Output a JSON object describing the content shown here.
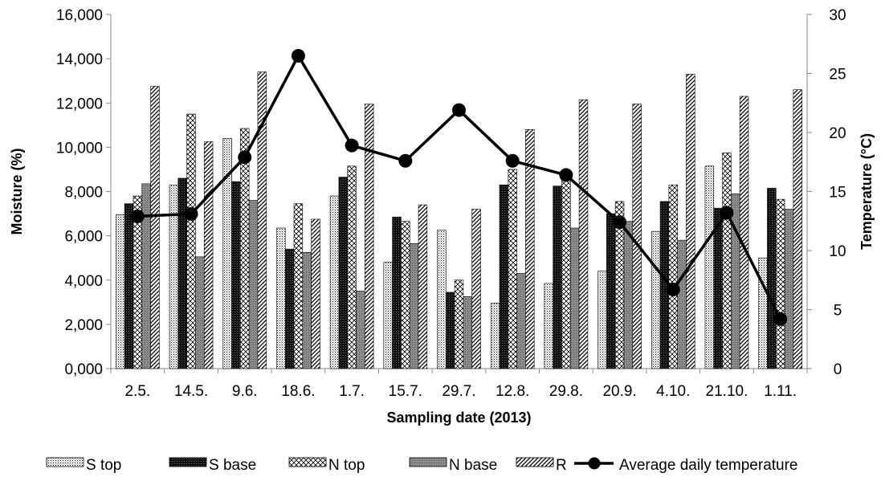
{
  "chart_data": {
    "type": "bar",
    "xlabel": "Sampling date (2013)",
    "ylabel": "Moisture (%)",
    "y2label": "Temperature (°C)",
    "ylim": [
      0,
      16000
    ],
    "y2lim": [
      0,
      30
    ],
    "yticks": [
      "0,000",
      "2,000",
      "4,000",
      "6,000",
      "8,000",
      "10,000",
      "12,000",
      "14,000",
      "16,000"
    ],
    "y2ticks": [
      "0",
      "5",
      "10",
      "15",
      "20",
      "25",
      "30"
    ],
    "grid": false,
    "legend_position": "bottom",
    "categories": [
      "2.5.",
      "14.5.",
      "9.6.",
      "18.6.",
      "1.7.",
      "15.7.",
      "29.7.",
      "12.8.",
      "29.8.",
      "20.9.",
      "4.10.",
      "21.10.",
      "1.11."
    ],
    "series": [
      {
        "name": "S top",
        "pattern": "dots",
        "values": [
          6950,
          8300,
          10400,
          6350,
          7800,
          4800,
          6250,
          2950,
          3850,
          4400,
          6200,
          9150,
          5000
        ]
      },
      {
        "name": "S base",
        "pattern": "solid-dark",
        "values": [
          7450,
          8600,
          8450,
          5400,
          8650,
          6850,
          3450,
          8300,
          8250,
          7000,
          7550,
          7250,
          8150
        ]
      },
      {
        "name": "N top",
        "pattern": "crosshatch",
        "values": [
          7800,
          11500,
          10850,
          7450,
          9150,
          6650,
          4000,
          9000,
          8650,
          7550,
          8300,
          9750,
          7650
        ]
      },
      {
        "name": "N base",
        "pattern": "grey",
        "values": [
          8350,
          5050,
          7600,
          5250,
          3500,
          5650,
          3250,
          4300,
          6350,
          6650,
          5800,
          7900,
          7200
        ]
      },
      {
        "name": "R",
        "pattern": "diagonal",
        "values": [
          12750,
          10250,
          13400,
          6750,
          11950,
          7400,
          7200,
          10800,
          12150,
          11950,
          13300,
          12300,
          12600
        ]
      },
      {
        "name": "Average daily temperature",
        "type": "line",
        "axis": "secondary",
        "values": [
          12.9,
          13.1,
          17.9,
          26.5,
          18.9,
          17.6,
          21.9,
          17.6,
          16.4,
          12.4,
          6.7,
          13.2,
          4.2
        ]
      }
    ],
    "colors": {
      "bar_stroke": "#000000",
      "line": "#000000",
      "grey_bar": "#8c8c8c",
      "dark_bar": "#1a1a1a"
    }
  }
}
